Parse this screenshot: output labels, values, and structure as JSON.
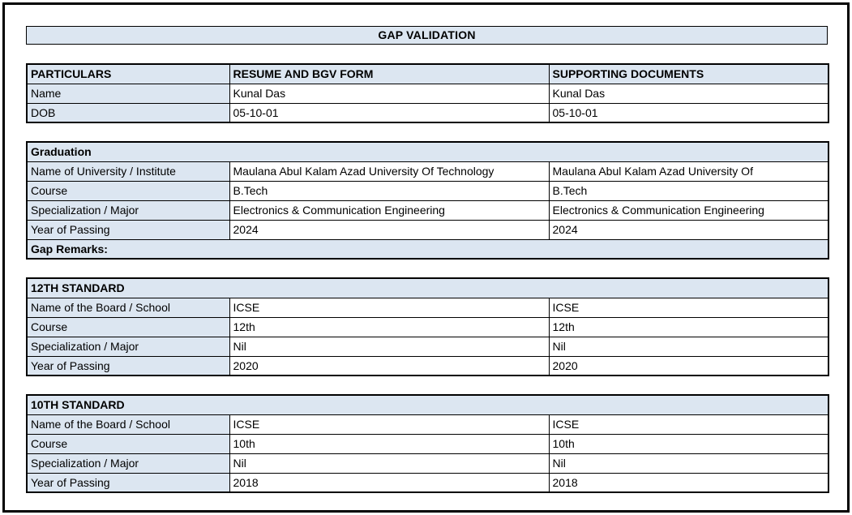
{
  "page": {
    "title": "GAP VALIDATION"
  },
  "colors": {
    "header_bg": "#dce6f1",
    "border": "#000000",
    "text": "#000000"
  },
  "particulars_table": {
    "headers": [
      "PARTICULARS",
      "RESUME AND BGV FORM",
      "SUPPORTING DOCUMENTS"
    ],
    "rows": [
      {
        "label": "Name",
        "resume": "Kunal Das",
        "supporting": "Kunal Das"
      },
      {
        "label": "DOB",
        "resume": "05-10-01",
        "supporting": "05-10-01"
      }
    ]
  },
  "sections": [
    {
      "title": "Graduation",
      "rows": [
        {
          "label": "Name of University / Institute",
          "resume": "Maulana Abul Kalam Azad University Of Technology",
          "supporting": "Maulana Abul Kalam Azad University Of"
        },
        {
          "label": "Course",
          "resume": "B.Tech",
          "supporting": "B.Tech"
        },
        {
          "label": "Specialization / Major",
          "resume": "Electronics & Communication Engineering",
          "supporting": "Electronics & Communication Engineering"
        },
        {
          "label": "Year of Passing",
          "resume": "2024",
          "supporting": "2024"
        }
      ],
      "footer": "Gap Remarks:"
    },
    {
      "title": "12TH STANDARD",
      "rows": [
        {
          "label": "Name of the Board / School",
          "resume": "ICSE",
          "supporting": "ICSE"
        },
        {
          "label": "Course",
          "resume": "12th",
          "supporting": "12th"
        },
        {
          "label": "Specialization / Major",
          "resume": "Nil",
          "supporting": "Nil"
        },
        {
          "label": "Year of Passing",
          "resume": "2020",
          "supporting": "2020"
        }
      ]
    },
    {
      "title": "10TH STANDARD",
      "rows": [
        {
          "label": "Name of the Board / School",
          "resume": "ICSE",
          "supporting": "ICSE"
        },
        {
          "label": "Course",
          "resume": "10th",
          "supporting": "10th"
        },
        {
          "label": "Specialization / Major",
          "resume": "Nil",
          "supporting": "Nil"
        },
        {
          "label": "Year of Passing",
          "resume": "2018",
          "supporting": "2018"
        }
      ]
    }
  ]
}
